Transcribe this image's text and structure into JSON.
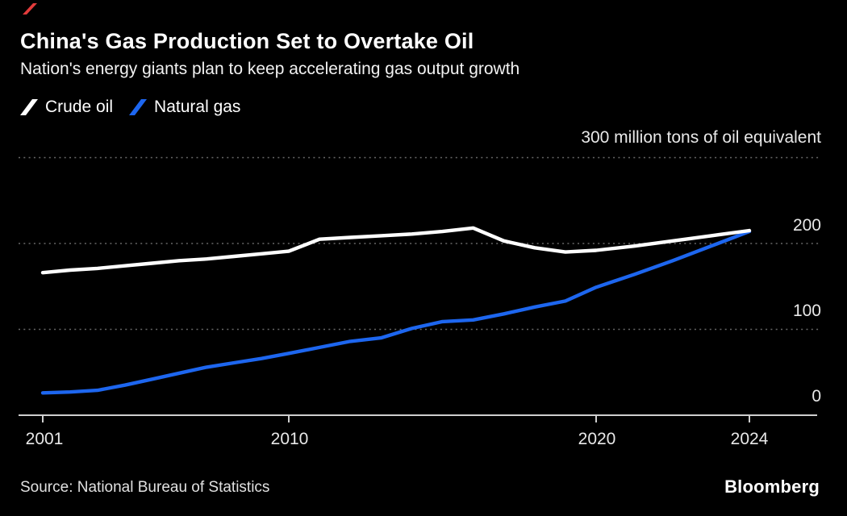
{
  "header": {
    "title": "China's Gas Production Set to Overtake Oil",
    "subtitle": "Nation's energy giants plan to keep accelerating gas output growth"
  },
  "legend": {
    "items": [
      {
        "label": "Crude oil",
        "color": "#ffffff"
      },
      {
        "label": "Natural gas",
        "color": "#1d66ef"
      }
    ]
  },
  "axis": {
    "unit_label": "300 million tons of oil equivalent",
    "y_tick_labels": [
      "200",
      "100",
      "0"
    ],
    "x_tick_labels": [
      "2001",
      "2010",
      "2020",
      "2024"
    ]
  },
  "footer": {
    "source": "Source: National Bureau of Statistics",
    "logo_text": "Bloomberg"
  },
  "colors": {
    "background": "#000000",
    "crude_oil": "#ffffff",
    "natural_gas": "#1d66ef",
    "gridline": "#686868",
    "axis_line": "#cfcfcf",
    "accent_red": "#e23b3b"
  },
  "chart_data": {
    "type": "line",
    "title": "China's Gas Production Set to Overtake Oil",
    "subtitle": "Nation's energy giants plan to keep accelerating gas output growth",
    "ylabel": "million tons of oil equivalent",
    "ylim": [
      0,
      300
    ],
    "y_gridlines": [
      100,
      200,
      300
    ],
    "x_ticks": [
      2001,
      2010,
      2020,
      2024
    ],
    "grid": "dotted horizontal, labels above lines, right-aligned",
    "legend_position": "top-left",
    "x": [
      2001,
      2002,
      2003,
      2004,
      2005,
      2006,
      2007,
      2008,
      2009,
      2010,
      2011,
      2012,
      2013,
      2014,
      2015,
      2016,
      2017,
      2018,
      2019,
      2020,
      2021,
      2022,
      2023,
      2024
    ],
    "series": [
      {
        "name": "Crude oil",
        "color": "#ffffff",
        "values": [
          166,
          169,
          171,
          174,
          177,
          180,
          182,
          185,
          188,
          191,
          205,
          207,
          209,
          211,
          214,
          218,
          203,
          195,
          190,
          192,
          197,
          203,
          209,
          215
        ]
      },
      {
        "name": "Natural gas",
        "color": "#1d66ef",
        "values": [
          26,
          27,
          29,
          35,
          42,
          49,
          56,
          61,
          66,
          72,
          79,
          86,
          90,
          101,
          109,
          111,
          118,
          126,
          133,
          149,
          164,
          180,
          197,
          214
        ]
      }
    ]
  }
}
